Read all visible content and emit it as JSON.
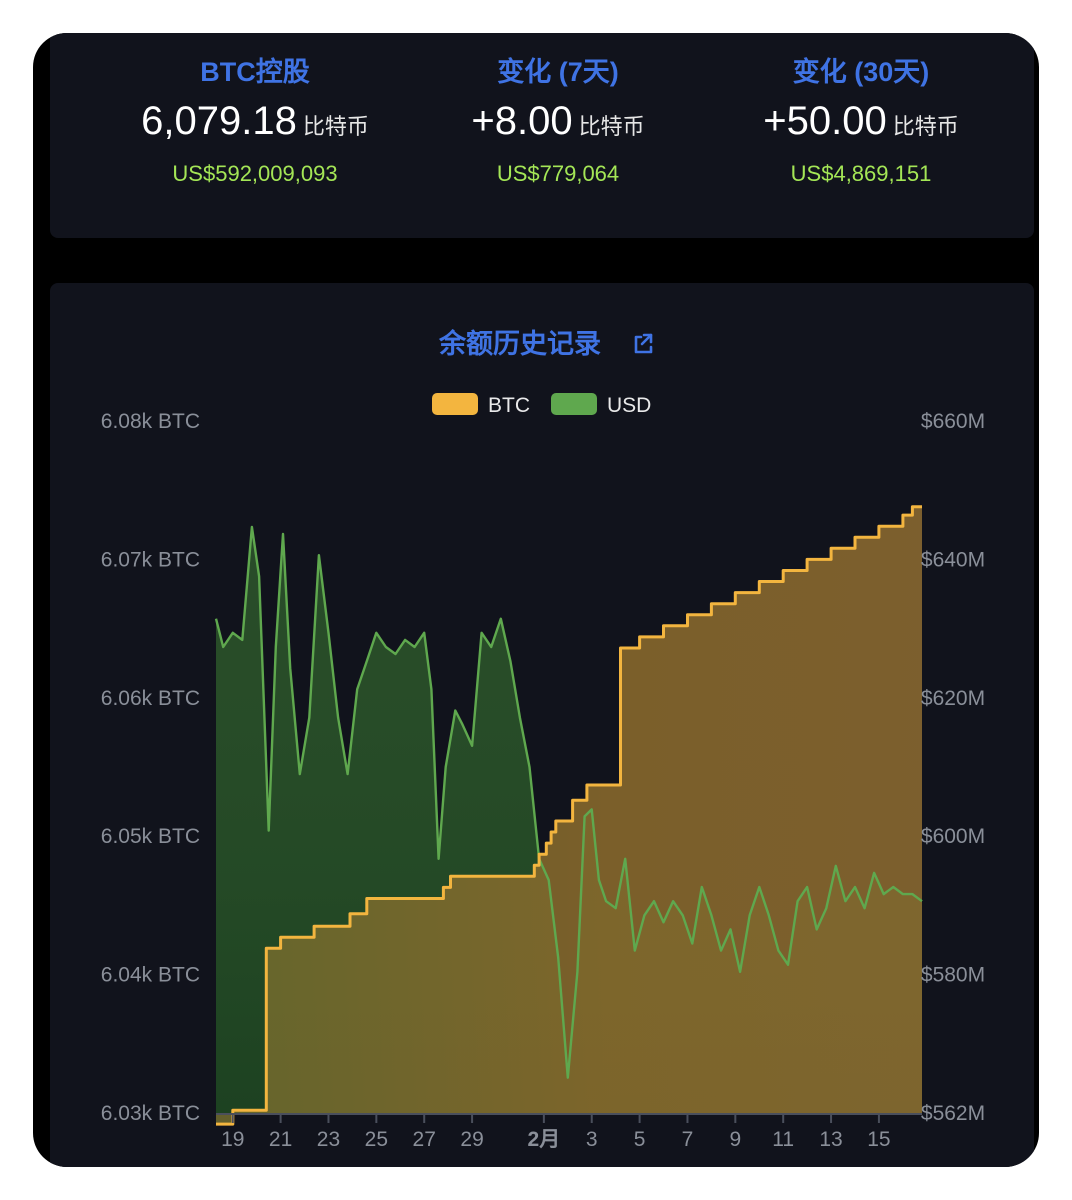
{
  "stats": {
    "holdings": {
      "title": "BTC控股",
      "value": "6,079.18",
      "unit": "比特币",
      "usd": "US$592,009,093"
    },
    "change7": {
      "title": "变化 (7天)",
      "value": "+8.00",
      "unit": "比特币",
      "usd": "US$779,064"
    },
    "change30": {
      "title": "变化 (30天)",
      "value": "+50.00",
      "unit": "比特币",
      "usd": "US$4,869,151"
    }
  },
  "colors": {
    "accent": "#3f73e4",
    "positive": "#a4e656",
    "btc_line": "#f3b53f",
    "usd_line": "#5fa84e"
  },
  "chart_data": {
    "type": "area",
    "title": "余额历史记录",
    "title_icon": "external-link-icon",
    "legend": [
      {
        "name": "BTC",
        "color": "#f3b53f"
      },
      {
        "name": "USD",
        "color": "#5fa84e"
      }
    ],
    "legend_position": "top-center",
    "x_tick_labels": [
      "19",
      "21",
      "23",
      "25",
      "27",
      "29",
      "2月",
      "3",
      "5",
      "7",
      "9",
      "11",
      "13",
      "15"
    ],
    "y_left_ticks": [
      "6.08k BTC",
      "6.07k BTC",
      "6.06k BTC",
      "6.05k BTC",
      "6.04k BTC",
      "6.03k BTC"
    ],
    "y_right_ticks": [
      "$660M",
      "$640M",
      "$620M",
      "$600M",
      "$580M",
      "$562M"
    ],
    "y_left_range": [
      6030,
      6080
    ],
    "y_right_range": [
      562,
      660
    ],
    "x_range_days": [
      18.3,
      47.8
    ],
    "grid": false,
    "series": [
      {
        "name": "BTC",
        "axis": "left",
        "step": true,
        "points": [
          [
            18.3,
            6029.2
          ],
          [
            19.0,
            6030.2
          ],
          [
            20.4,
            6041.9
          ],
          [
            21.0,
            6042.7
          ],
          [
            22.4,
            6043.5
          ],
          [
            23.9,
            6044.4
          ],
          [
            24.6,
            6045.5
          ],
          [
            27.8,
            6046.3
          ],
          [
            28.1,
            6047.1
          ],
          [
            31.6,
            6047.9
          ],
          [
            31.8,
            6048.7
          ],
          [
            32.1,
            6049.5
          ],
          [
            32.3,
            6050.3
          ],
          [
            32.5,
            6051.1
          ],
          [
            33.2,
            6052.6
          ],
          [
            33.8,
            6053.7
          ],
          [
            35.2,
            6063.6
          ],
          [
            36.0,
            6064.4
          ],
          [
            37.0,
            6065.2
          ],
          [
            38.0,
            6066.0
          ],
          [
            39.0,
            6066.8
          ],
          [
            40.0,
            6067.6
          ],
          [
            41.0,
            6068.4
          ],
          [
            42.0,
            6069.2
          ],
          [
            43.0,
            6070.0
          ],
          [
            44.0,
            6070.8
          ],
          [
            45.0,
            6071.6
          ],
          [
            46.0,
            6072.4
          ],
          [
            47.0,
            6073.2
          ],
          [
            47.4,
            6073.8
          ],
          [
            47.8,
            6073.8
          ]
        ]
      },
      {
        "name": "USD",
        "axis": "right",
        "points": [
          [
            18.3,
            632
          ],
          [
            18.6,
            628
          ],
          [
            19.0,
            630
          ],
          [
            19.4,
            629
          ],
          [
            19.8,
            645
          ],
          [
            20.1,
            638
          ],
          [
            20.5,
            602
          ],
          [
            20.8,
            628
          ],
          [
            21.1,
            644
          ],
          [
            21.4,
            625
          ],
          [
            21.8,
            610
          ],
          [
            22.2,
            618
          ],
          [
            22.6,
            641
          ],
          [
            23.0,
            630
          ],
          [
            23.4,
            618
          ],
          [
            23.8,
            610
          ],
          [
            24.2,
            622
          ],
          [
            24.6,
            626
          ],
          [
            25.0,
            630
          ],
          [
            25.4,
            628
          ],
          [
            25.8,
            627
          ],
          [
            26.2,
            629
          ],
          [
            26.6,
            628
          ],
          [
            27.0,
            630
          ],
          [
            27.3,
            622
          ],
          [
            27.6,
            598
          ],
          [
            27.9,
            611
          ],
          [
            28.3,
            619
          ],
          [
            28.6,
            617
          ],
          [
            29.0,
            614
          ],
          [
            29.4,
            630
          ],
          [
            29.8,
            628
          ],
          [
            30.2,
            632
          ],
          [
            30.6,
            626
          ],
          [
            31.0,
            618
          ],
          [
            31.4,
            611
          ],
          [
            31.8,
            598
          ],
          [
            32.2,
            595
          ],
          [
            32.6,
            584
          ],
          [
            33.0,
            567
          ],
          [
            33.4,
            582
          ],
          [
            33.7,
            604
          ],
          [
            34.0,
            605
          ],
          [
            34.3,
            595
          ],
          [
            34.6,
            592
          ],
          [
            35.0,
            591
          ],
          [
            35.4,
            598
          ],
          [
            35.8,
            585
          ],
          [
            36.2,
            590
          ],
          [
            36.6,
            592
          ],
          [
            37.0,
            589
          ],
          [
            37.4,
            592
          ],
          [
            37.8,
            590
          ],
          [
            38.2,
            586
          ],
          [
            38.6,
            594
          ],
          [
            39.0,
            590
          ],
          [
            39.4,
            585
          ],
          [
            39.8,
            588
          ],
          [
            40.2,
            582
          ],
          [
            40.6,
            590
          ],
          [
            41.0,
            594
          ],
          [
            41.4,
            590
          ],
          [
            41.8,
            585
          ],
          [
            42.2,
            583
          ],
          [
            42.6,
            592
          ],
          [
            43.0,
            594
          ],
          [
            43.4,
            588
          ],
          [
            43.8,
            591
          ],
          [
            44.2,
            597
          ],
          [
            44.6,
            592
          ],
          [
            45.0,
            594
          ],
          [
            45.4,
            591
          ],
          [
            45.8,
            596
          ],
          [
            46.2,
            593
          ],
          [
            46.6,
            594
          ],
          [
            47.0,
            593
          ],
          [
            47.4,
            593
          ],
          [
            47.8,
            592
          ]
        ]
      }
    ]
  }
}
